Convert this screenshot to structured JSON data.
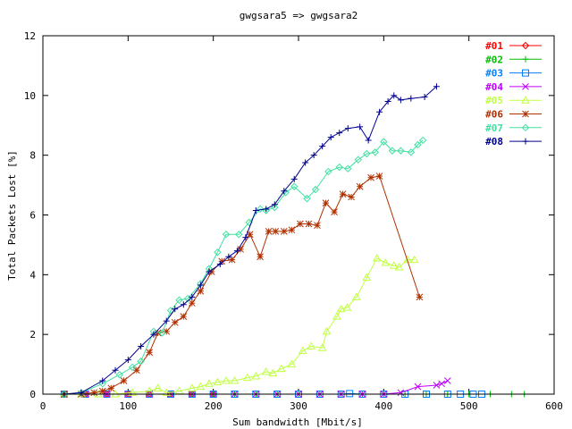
{
  "chart_data": {
    "type": "line",
    "title": "gwgsara5 => gwgsara2",
    "xlabel": "Sum bandwidth [Mbit/s]",
    "ylabel": "Total Packets Lost [%]",
    "xlim": [
      0,
      600
    ],
    "ylim": [
      0,
      12
    ],
    "x_ticks": [
      "0",
      "100",
      "200",
      "300",
      "400",
      "500",
      "600"
    ],
    "y_ticks": [
      "0",
      "2",
      "4",
      "6",
      "8",
      "10",
      "12"
    ],
    "grid": false,
    "legend_position": "top-right",
    "series": [
      {
        "name": "#01",
        "color": "#ff0000",
        "marker": "diamond",
        "x": [
          25,
          50,
          75,
          100,
          125,
          150,
          175,
          200
        ],
        "y": [
          0,
          0,
          0,
          0,
          0,
          0,
          0,
          0
        ]
      },
      {
        "name": "#02",
        "color": "#00c000",
        "marker": "plus",
        "x": [
          25,
          50,
          75,
          100,
          125,
          150,
          175,
          200,
          225,
          250,
          275,
          300,
          325,
          350,
          375,
          400,
          425,
          450,
          475,
          500,
          525,
          550,
          565
        ],
        "y": [
          0,
          0,
          0,
          0,
          0,
          0,
          0,
          0,
          0,
          0,
          0,
          0,
          0,
          0,
          0,
          0,
          0,
          0,
          0,
          0,
          0,
          0,
          0
        ]
      },
      {
        "name": "#03",
        "color": "#0080ff",
        "marker": "square",
        "x": [
          25,
          50,
          75,
          100,
          125,
          150,
          175,
          200,
          225,
          250,
          275,
          300,
          325,
          350,
          360,
          375,
          400,
          425,
          450,
          475,
          490,
          505,
          515
        ],
        "y": [
          0,
          0,
          0,
          0,
          0,
          0,
          0,
          0,
          0,
          0,
          0,
          0,
          0,
          0,
          0.02,
          0,
          0,
          0,
          0,
          0,
          0,
          0,
          0
        ]
      },
      {
        "name": "#04",
        "color": "#c000ff",
        "marker": "cross",
        "x": [
          25,
          50,
          75,
          100,
          125,
          150,
          175,
          200,
          225,
          250,
          275,
          300,
          325,
          350,
          375,
          400,
          420,
          440,
          462,
          468,
          475
        ],
        "y": [
          0,
          0,
          0,
          0,
          0,
          0,
          0,
          0,
          0,
          0,
          0,
          0,
          0,
          0,
          0,
          0,
          0.05,
          0.25,
          0.3,
          0.35,
          0.45
        ]
      },
      {
        "name": "#05",
        "color": "#c0ff40",
        "marker": "triangle",
        "x": [
          25,
          45,
          65,
          85,
          105,
          125,
          135,
          145,
          160,
          175,
          185,
          195,
          205,
          215,
          225,
          240,
          250,
          262,
          270,
          280,
          292,
          305,
          315,
          328,
          333,
          345,
          350,
          357,
          368,
          380,
          392,
          402,
          412,
          418,
          428,
          436
        ],
        "y": [
          0,
          0,
          0,
          0,
          0.05,
          0.1,
          0.2,
          0.05,
          0.1,
          0.2,
          0.25,
          0.35,
          0.4,
          0.45,
          0.45,
          0.55,
          0.6,
          0.75,
          0.7,
          0.85,
          1.0,
          1.45,
          1.6,
          1.55,
          2.1,
          2.6,
          2.85,
          2.9,
          3.25,
          3.9,
          4.55,
          4.4,
          4.3,
          4.25,
          4.5,
          4.5
        ]
      },
      {
        "name": "#06",
        "color": "#b03000",
        "marker": "star",
        "x": [
          25,
          45,
          60,
          70,
          80,
          95,
          110,
          125,
          135,
          145,
          155,
          165,
          175,
          185,
          198,
          210,
          222,
          232,
          243,
          255,
          265,
          273,
          283,
          292,
          302,
          312,
          322,
          332,
          342,
          352,
          362,
          372,
          385,
          395,
          442
        ],
        "y": [
          0,
          0,
          0.05,
          0.1,
          0.2,
          0.45,
          0.8,
          1.4,
          2.05,
          2.1,
          2.4,
          2.6,
          3.05,
          3.45,
          4.1,
          4.45,
          4.5,
          4.85,
          5.35,
          4.6,
          5.45,
          5.45,
          5.45,
          5.5,
          5.7,
          5.7,
          5.65,
          6.4,
          6.1,
          6.7,
          6.6,
          6.95,
          7.25,
          7.3,
          3.25
        ]
      },
      {
        "name": "#07",
        "color": "#40e0a0",
        "marker": "diamond",
        "x": [
          25,
          45,
          70,
          90,
          105,
          115,
          130,
          140,
          150,
          160,
          170,
          185,
          195,
          205,
          215,
          230,
          242,
          255,
          262,
          272,
          285,
          295,
          310,
          320,
          335,
          348,
          358,
          370,
          380,
          390,
          400,
          410,
          420,
          432,
          440,
          446
        ],
        "y": [
          0,
          0.05,
          0.35,
          0.65,
          0.9,
          1.1,
          2.1,
          2.05,
          2.8,
          3.15,
          3.2,
          3.7,
          4.2,
          4.75,
          5.35,
          5.35,
          5.75,
          6.2,
          6.15,
          6.25,
          6.75,
          6.95,
          6.55,
          6.85,
          7.45,
          7.6,
          7.55,
          7.85,
          8.05,
          8.1,
          8.45,
          8.15,
          8.15,
          8.1,
          8.35,
          8.5
        ]
      },
      {
        "name": "#08",
        "color": "#000090",
        "marker": "plus",
        "x": [
          25,
          45,
          70,
          85,
          100,
          115,
          130,
          145,
          155,
          165,
          175,
          185,
          195,
          208,
          218,
          228,
          238,
          250,
          262,
          272,
          283,
          295,
          308,
          318,
          328,
          338,
          348,
          358,
          372,
          382,
          395,
          405,
          412,
          420,
          432,
          448,
          462
        ],
        "y": [
          0,
          0.05,
          0.45,
          0.8,
          1.15,
          1.6,
          2.0,
          2.45,
          2.85,
          3.0,
          3.25,
          3.65,
          4.1,
          4.35,
          4.6,
          4.8,
          5.25,
          6.15,
          6.2,
          6.35,
          6.8,
          7.2,
          7.75,
          8.0,
          8.3,
          8.6,
          8.75,
          8.9,
          8.95,
          8.5,
          9.45,
          9.8,
          10.0,
          9.85,
          9.9,
          9.95,
          10.3
        ]
      }
    ]
  }
}
